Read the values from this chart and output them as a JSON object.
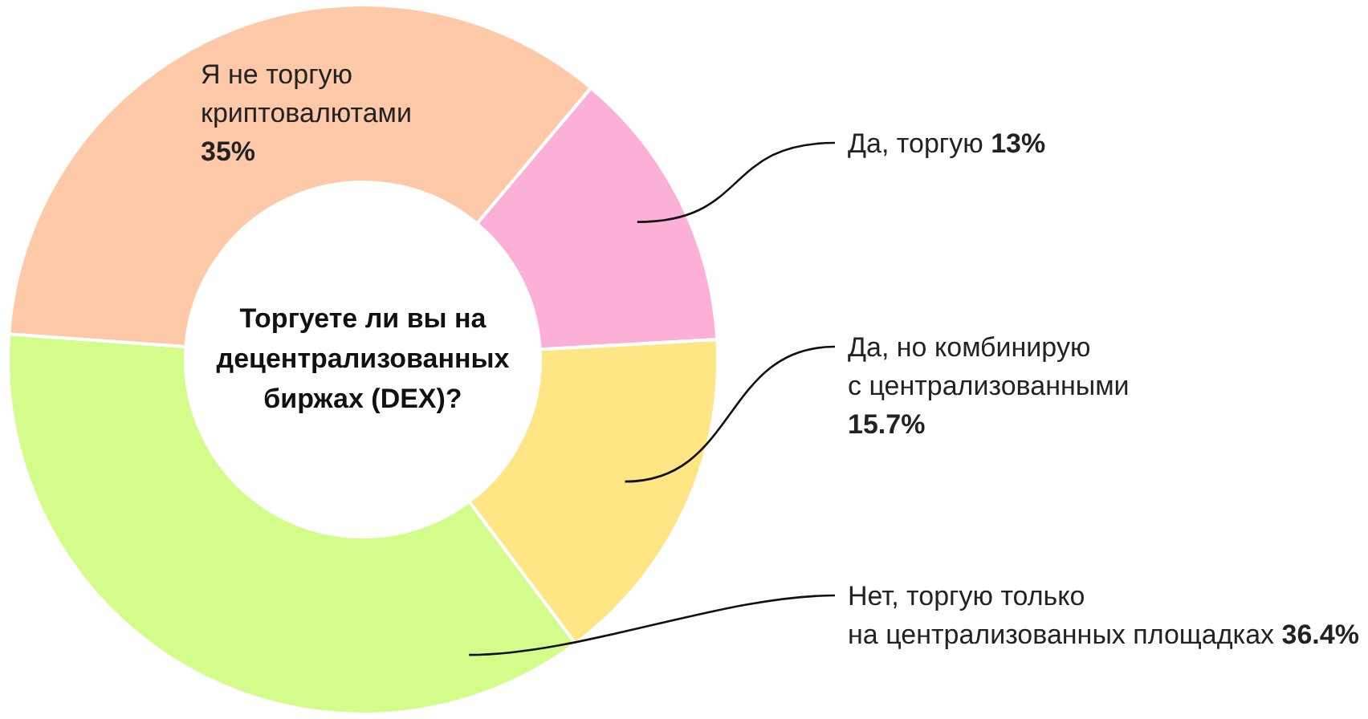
{
  "chart_data": {
    "type": "donut",
    "title": "Торгуете ли вы на децентрализованных биржах (DEX)?",
    "categories": [
      "Да, торгую",
      "Да, но комбинирую с централизованными",
      "Нет, торгую только на централизованных площадках",
      "Я не торгую криптовалютами"
    ],
    "values": [
      13,
      15.7,
      36.4,
      35
    ],
    "colors": [
      "#fdb0d5",
      "#fee685",
      "#d4fc8a",
      "#fec9a8"
    ],
    "value_labels": [
      "13%",
      "15.7%",
      "36.4%",
      "35%"
    ],
    "legend": false
  }
}
